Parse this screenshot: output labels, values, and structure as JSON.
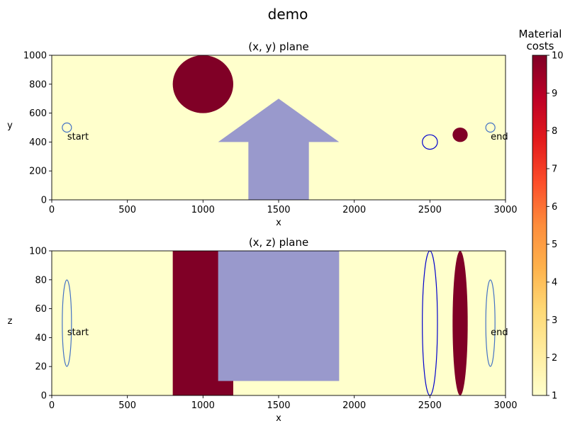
{
  "chart_data": {
    "suptitle": "demo",
    "colorbar": {
      "title_line1": "Material",
      "title_line2": "costs",
      "range": [
        1,
        10
      ],
      "ticks": [
        "1",
        "2",
        "3",
        "4",
        "5",
        "6",
        "7",
        "8",
        "9",
        "10"
      ],
      "colormap": "YlOrRd",
      "colors": [
        "#ffffcc",
        "#ffeda0",
        "#fed976",
        "#feb24c",
        "#fd8d3c",
        "#fc4e2a",
        "#e31a1c",
        "#bd0026",
        "#800026"
      ]
    },
    "background_color": "#ffffcc",
    "high_cost_color": "#800026",
    "building_color": "#9999cc",
    "waypoint_color": "#4472c4",
    "sphere_outline_color": "#0000cc",
    "panels": [
      {
        "id": "xy",
        "type": "heatmap",
        "title": "(x, y) plane",
        "xlabel": "x",
        "ylabel": "y",
        "xlim": [
          0,
          3000
        ],
        "ylim": [
          0,
          1000
        ],
        "xticks": [
          "0",
          "500",
          "1000",
          "1500",
          "2000",
          "2500",
          "3000"
        ],
        "yticks": [
          "0",
          "200",
          "400",
          "600",
          "800",
          "1000"
        ],
        "obstacles": [
          {
            "name": "high-cost-cylinder",
            "shape": "ellipse",
            "cx": 1000,
            "cy": 800,
            "rx": 200,
            "ry": 200,
            "cost": 10
          },
          {
            "name": "arrow-building",
            "shape": "polygon",
            "points": [
              [
                1300,
                0
              ],
              [
                1700,
                0
              ],
              [
                1700,
                400
              ],
              [
                1900,
                400
              ],
              [
                1500,
                700
              ],
              [
                1100,
                400
              ],
              [
                1300,
                400
              ]
            ],
            "cost": null
          },
          {
            "name": "high-cost-sphere",
            "shape": "ellipse",
            "cx": 2700,
            "cy": 450,
            "rx": 50,
            "ry": 50,
            "cost": 10
          },
          {
            "name": "zero-cost-sphere",
            "shape": "ellipse-outline",
            "cx": 2500,
            "cy": 400,
            "rx": 50,
            "ry": 50,
            "cost": null
          }
        ],
        "waypoints": [
          {
            "label": "start",
            "x": 100,
            "y": 500
          },
          {
            "label": "end",
            "x": 2900,
            "y": 500
          }
        ]
      },
      {
        "id": "xz",
        "type": "heatmap",
        "title": "(x, z) plane",
        "xlabel": "x",
        "ylabel": "z",
        "xlim": [
          0,
          3000
        ],
        "ylim": [
          0,
          100
        ],
        "xticks": [
          "0",
          "500",
          "1000",
          "1500",
          "2000",
          "2500",
          "3000"
        ],
        "yticks": [
          "0",
          "20",
          "40",
          "60",
          "80",
          "100"
        ],
        "obstacles": [
          {
            "name": "high-cost-cylinder",
            "shape": "rect",
            "x0": 800,
            "x1": 1200,
            "y0": 0,
            "y1": 100,
            "cost": 10
          },
          {
            "name": "arrow-building",
            "shape": "rect",
            "x0": 1100,
            "x1": 1900,
            "y0": 10,
            "y1": 100,
            "cost": null
          },
          {
            "name": "high-cost-sphere",
            "shape": "ellipse",
            "cx": 2700,
            "cy": 50,
            "rx": 50,
            "ry": 50,
            "cost": 10
          },
          {
            "name": "zero-cost-sphere",
            "shape": "ellipse-outline",
            "cx": 2500,
            "cy": 50,
            "rx": 50,
            "ry": 50,
            "cost": null
          }
        ],
        "waypoints": [
          {
            "label": "start",
            "x": 100,
            "z": 50
          },
          {
            "label": "end",
            "x": 2900,
            "z": 50
          }
        ]
      }
    ]
  }
}
